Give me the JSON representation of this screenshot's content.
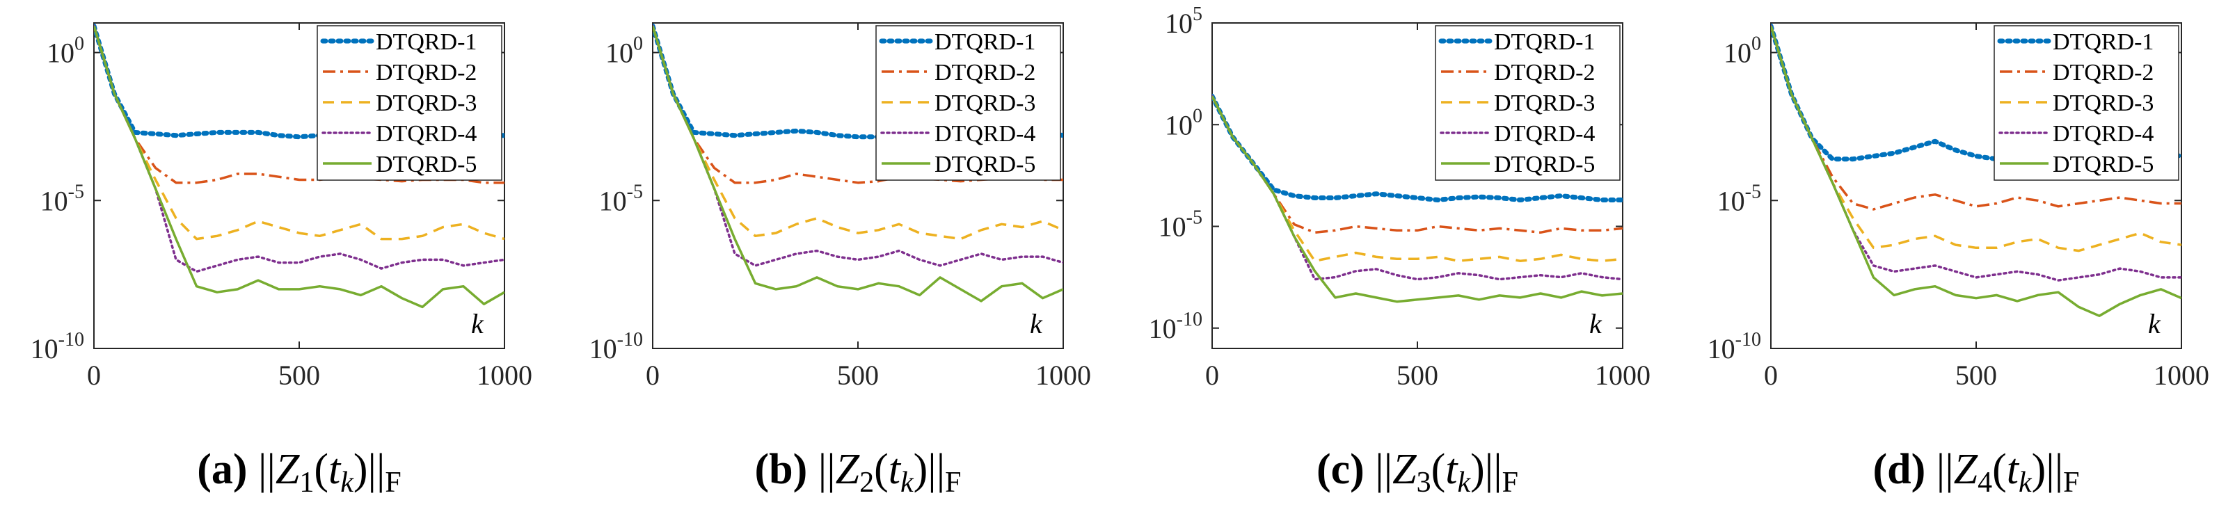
{
  "figure": {
    "series_names": [
      "DTQRD-1",
      "DTQRD-2",
      "DTQRD-3",
      "DTQRD-4",
      "DTQRD-5"
    ],
    "series_colors": [
      "#0072BD",
      "#D95319",
      "#EDB120",
      "#7E2F8E",
      "#77AC30"
    ],
    "series_styles": [
      "dotted-thick",
      "dashdot",
      "dashed",
      "dotted",
      "solid"
    ],
    "x_ticks": [
      "0",
      "500",
      "1000"
    ],
    "xlim": [
      0,
      1000
    ],
    "x_annotation": "k",
    "scale": "log"
  },
  "chart_data": [
    {
      "type": "line",
      "label": "(a)",
      "caption_sub": "1",
      "yscale": "log",
      "ylim_exp": [
        -10,
        1
      ],
      "y_ticks": [
        {
          "base": "10",
          "exp": "0"
        },
        {
          "base": "10",
          "exp": "-5"
        },
        {
          "base": "10",
          "exp": "-10"
        }
      ],
      "x": [
        0,
        50,
        100,
        150,
        200,
        250,
        300,
        350,
        400,
        450,
        500,
        550,
        600,
        650,
        700,
        750,
        800,
        850,
        900,
        950,
        1000
      ],
      "series": [
        {
          "name": "DTQRD-1",
          "log10_values": [
            0.9,
            -1.4,
            -2.7,
            -2.75,
            -2.8,
            -2.75,
            -2.7,
            -2.7,
            -2.7,
            -2.8,
            -2.85,
            -2.8,
            -2.8,
            -2.85,
            -2.9,
            -2.85,
            -2.8,
            -2.75,
            -2.8,
            -2.8,
            -2.8
          ]
        },
        {
          "name": "DTQRD-2",
          "log10_values": [
            0.9,
            -1.4,
            -2.9,
            -3.9,
            -4.4,
            -4.4,
            -4.3,
            -4.1,
            -4.1,
            -4.2,
            -4.3,
            -4.3,
            -4.2,
            -4.25,
            -4.3,
            -4.35,
            -4.3,
            -4.3,
            -4.3,
            -4.4,
            -4.4
          ]
        },
        {
          "name": "DTQRD-3",
          "log10_values": [
            0.9,
            -1.4,
            -2.9,
            -4.3,
            -5.6,
            -6.3,
            -6.2,
            -6.0,
            -5.7,
            -5.9,
            -6.1,
            -6.2,
            -6.0,
            -5.8,
            -6.3,
            -6.3,
            -6.2,
            -5.9,
            -5.8,
            -6.1,
            -6.3
          ]
        },
        {
          "name": "DTQRD-4",
          "log10_values": [
            0.9,
            -1.4,
            -2.9,
            -4.6,
            -7.0,
            -7.4,
            -7.2,
            -7.0,
            -6.9,
            -7.1,
            -7.1,
            -6.9,
            -6.8,
            -7.0,
            -7.3,
            -7.1,
            -7.0,
            -7.0,
            -7.2,
            -7.1,
            -7.0
          ]
        },
        {
          "name": "DTQRD-5",
          "log10_values": [
            0.9,
            -1.4,
            -2.9,
            -4.6,
            -6.3,
            -7.9,
            -8.1,
            -8.0,
            -7.7,
            -8.0,
            -8.0,
            -7.9,
            -8.0,
            -8.2,
            -7.9,
            -8.3,
            -8.6,
            -8.0,
            -7.9,
            -8.5,
            -8.1
          ]
        }
      ]
    },
    {
      "type": "line",
      "label": "(b)",
      "caption_sub": "2",
      "yscale": "log",
      "ylim_exp": [
        -10,
        1
      ],
      "y_ticks": [
        {
          "base": "10",
          "exp": "0"
        },
        {
          "base": "10",
          "exp": "-5"
        },
        {
          "base": "10",
          "exp": "-10"
        }
      ],
      "x": [
        0,
        50,
        100,
        150,
        200,
        250,
        300,
        350,
        400,
        450,
        500,
        550,
        600,
        650,
        700,
        750,
        800,
        850,
        900,
        950,
        1000
      ],
      "series": [
        {
          "name": "DTQRD-1",
          "log10_values": [
            0.9,
            -1.4,
            -2.7,
            -2.75,
            -2.8,
            -2.75,
            -2.7,
            -2.65,
            -2.7,
            -2.8,
            -2.85,
            -2.85,
            -2.8,
            -2.8,
            -2.9,
            -2.9,
            -2.85,
            -2.8,
            -2.8,
            -2.7,
            -2.8
          ]
        },
        {
          "name": "DTQRD-2",
          "log10_values": [
            0.9,
            -1.4,
            -2.9,
            -3.9,
            -4.4,
            -4.4,
            -4.3,
            -4.1,
            -4.2,
            -4.3,
            -4.4,
            -4.35,
            -4.2,
            -4.25,
            -4.3,
            -4.35,
            -4.3,
            -4.25,
            -4.2,
            -4.3,
            -4.3
          ]
        },
        {
          "name": "DTQRD-3",
          "log10_values": [
            0.9,
            -1.4,
            -2.9,
            -4.3,
            -5.6,
            -6.2,
            -6.1,
            -5.8,
            -5.6,
            -5.9,
            -6.1,
            -6.0,
            -5.8,
            -6.1,
            -6.2,
            -6.3,
            -6.0,
            -5.8,
            -5.9,
            -5.7,
            -6.0
          ]
        },
        {
          "name": "DTQRD-4",
          "log10_values": [
            0.9,
            -1.4,
            -2.9,
            -4.6,
            -6.8,
            -7.2,
            -7.0,
            -6.8,
            -6.7,
            -6.9,
            -7.0,
            -6.9,
            -6.7,
            -7.0,
            -7.2,
            -7.0,
            -6.8,
            -7.0,
            -6.9,
            -6.9,
            -7.1
          ]
        },
        {
          "name": "DTQRD-5",
          "log10_values": [
            0.9,
            -1.4,
            -2.9,
            -4.6,
            -6.3,
            -7.8,
            -8.0,
            -7.9,
            -7.6,
            -7.9,
            -8.0,
            -7.8,
            -7.9,
            -8.2,
            -7.6,
            -8.0,
            -8.4,
            -7.9,
            -7.8,
            -8.3,
            -8.0
          ]
        }
      ]
    },
    {
      "type": "line",
      "label": "(c)",
      "caption_sub": "3",
      "yscale": "log",
      "ylim_exp": [
        -11,
        5
      ],
      "y_ticks": [
        {
          "base": "10",
          "exp": "5"
        },
        {
          "base": "10",
          "exp": "0"
        },
        {
          "base": "10",
          "exp": "-5"
        },
        {
          "base": "10",
          "exp": "-10"
        }
      ],
      "x": [
        0,
        50,
        100,
        150,
        200,
        250,
        300,
        350,
        400,
        450,
        500,
        550,
        600,
        650,
        700,
        750,
        800,
        850,
        900,
        950,
        1000
      ],
      "series": [
        {
          "name": "DTQRD-1",
          "log10_values": [
            1.4,
            -0.6,
            -1.9,
            -3.2,
            -3.5,
            -3.6,
            -3.6,
            -3.5,
            -3.4,
            -3.5,
            -3.6,
            -3.7,
            -3.6,
            -3.55,
            -3.6,
            -3.7,
            -3.6,
            -3.5,
            -3.6,
            -3.7,
            -3.7
          ]
        },
        {
          "name": "DTQRD-2",
          "log10_values": [
            1.4,
            -0.6,
            -1.9,
            -3.4,
            -4.9,
            -5.3,
            -5.2,
            -5.0,
            -5.1,
            -5.2,
            -5.2,
            -5.0,
            -5.1,
            -5.2,
            -5.1,
            -5.2,
            -5.3,
            -5.1,
            -5.2,
            -5.2,
            -5.1
          ]
        },
        {
          "name": "DTQRD-3",
          "log10_values": [
            1.4,
            -0.6,
            -1.9,
            -3.4,
            -5.2,
            -6.7,
            -6.5,
            -6.3,
            -6.5,
            -6.6,
            -6.6,
            -6.5,
            -6.7,
            -6.6,
            -6.5,
            -6.7,
            -6.6,
            -6.4,
            -6.6,
            -6.7,
            -6.6
          ]
        },
        {
          "name": "DTQRD-4",
          "log10_values": [
            1.4,
            -0.6,
            -1.9,
            -3.4,
            -5.5,
            -7.6,
            -7.5,
            -7.2,
            -7.1,
            -7.4,
            -7.6,
            -7.5,
            -7.3,
            -7.4,
            -7.6,
            -7.5,
            -7.4,
            -7.5,
            -7.3,
            -7.5,
            -7.6
          ]
        },
        {
          "name": "DTQRD-5",
          "log10_values": [
            1.4,
            -0.6,
            -1.9,
            -3.4,
            -5.5,
            -7.2,
            -8.5,
            -8.3,
            -8.5,
            -8.7,
            -8.6,
            -8.5,
            -8.4,
            -8.6,
            -8.4,
            -8.5,
            -8.3,
            -8.5,
            -8.2,
            -8.4,
            -8.3
          ]
        }
      ]
    },
    {
      "type": "line",
      "label": "(d)",
      "caption_sub": "4",
      "yscale": "log",
      "ylim_exp": [
        -10,
        1
      ],
      "y_ticks": [
        {
          "base": "10",
          "exp": "0"
        },
        {
          "base": "10",
          "exp": "-5"
        },
        {
          "base": "10",
          "exp": "-10"
        }
      ],
      "x": [
        0,
        50,
        100,
        150,
        200,
        250,
        300,
        350,
        400,
        450,
        500,
        550,
        600,
        650,
        700,
        750,
        800,
        850,
        900,
        950,
        1000
      ],
      "series": [
        {
          "name": "DTQRD-1",
          "log10_values": [
            0.9,
            -1.4,
            -2.9,
            -3.6,
            -3.6,
            -3.5,
            -3.4,
            -3.2,
            -3.0,
            -3.3,
            -3.5,
            -3.6,
            -3.4,
            -3.2,
            -3.5,
            -3.6,
            -3.4,
            -3.2,
            -3.1,
            -3.4,
            -3.5
          ]
        },
        {
          "name": "DTQRD-2",
          "log10_values": [
            0.9,
            -1.4,
            -2.9,
            -4.2,
            -5.1,
            -5.3,
            -5.1,
            -4.9,
            -4.8,
            -5.0,
            -5.2,
            -5.1,
            -4.9,
            -5.0,
            -5.2,
            -5.1,
            -5.0,
            -4.9,
            -5.0,
            -5.1,
            -5.1
          ]
        },
        {
          "name": "DTQRD-3",
          "log10_values": [
            0.9,
            -1.4,
            -2.9,
            -4.4,
            -5.6,
            -6.6,
            -6.5,
            -6.3,
            -6.2,
            -6.5,
            -6.6,
            -6.6,
            -6.4,
            -6.3,
            -6.6,
            -6.7,
            -6.5,
            -6.3,
            -6.1,
            -6.4,
            -6.5
          ]
        },
        {
          "name": "DTQRD-4",
          "log10_values": [
            0.9,
            -1.4,
            -2.9,
            -4.4,
            -6.0,
            -7.2,
            -7.4,
            -7.3,
            -7.2,
            -7.4,
            -7.6,
            -7.5,
            -7.4,
            -7.5,
            -7.7,
            -7.6,
            -7.5,
            -7.3,
            -7.4,
            -7.6,
            -7.6
          ]
        },
        {
          "name": "DTQRD-5",
          "log10_values": [
            0.9,
            -1.4,
            -2.9,
            -4.4,
            -6.0,
            -7.6,
            -8.2,
            -8.0,
            -7.9,
            -8.2,
            -8.3,
            -8.2,
            -8.4,
            -8.2,
            -8.1,
            -8.6,
            -8.9,
            -8.5,
            -8.2,
            -8.0,
            -8.3
          ]
        }
      ]
    }
  ]
}
